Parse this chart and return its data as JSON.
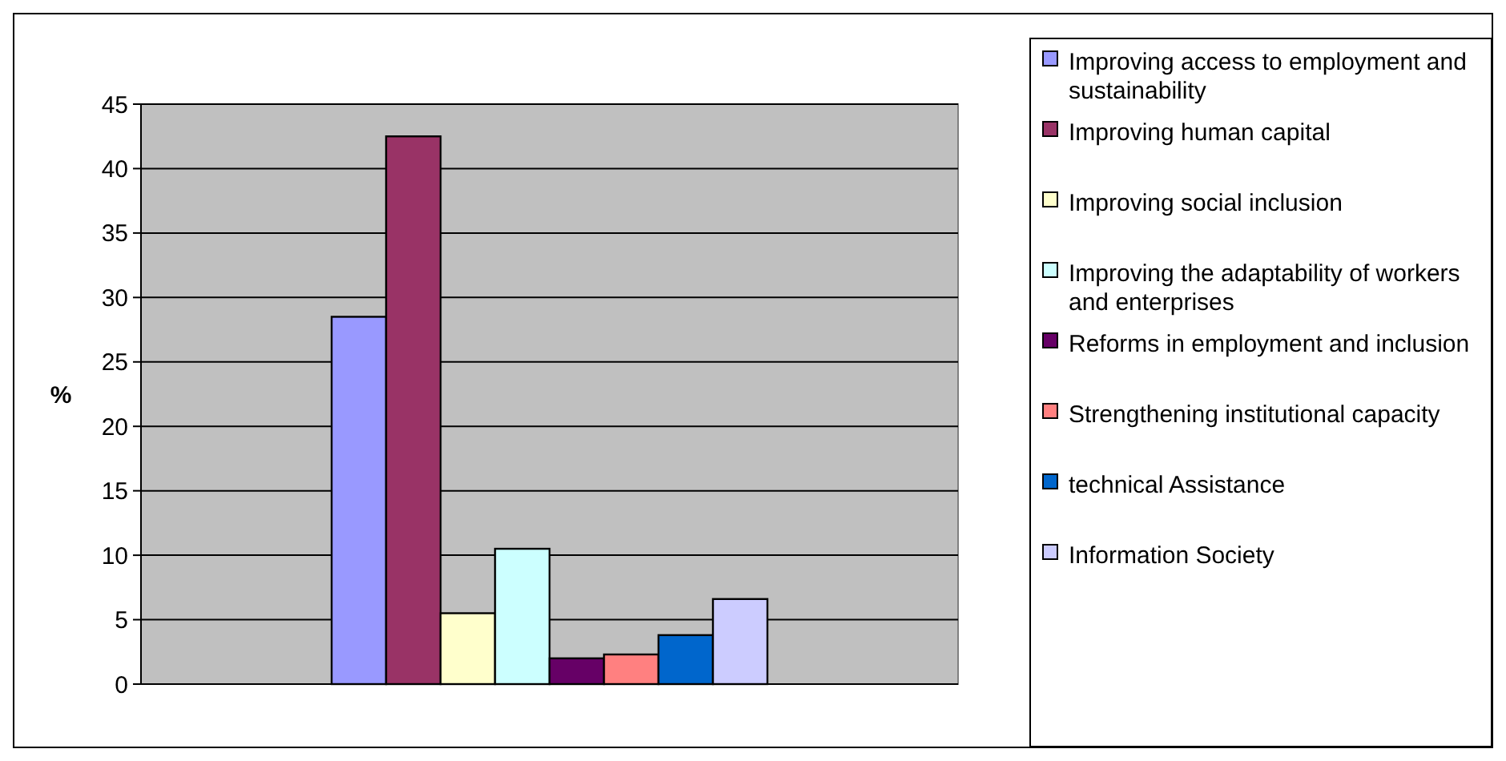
{
  "chart_data": {
    "type": "bar",
    "ylabel": "%",
    "categories": [
      null
    ],
    "series": [
      {
        "name": "Improving access to employment and sustainability",
        "color": "#9999ff",
        "values": [
          28.5
        ]
      },
      {
        "name": "Improving human capital",
        "color": "#993366",
        "values": [
          42.5
        ]
      },
      {
        "name": "Improving social inclusion",
        "color": "#ffffcc",
        "values": [
          5.5
        ]
      },
      {
        "name": "Improving the adaptability of workers and enterprises",
        "color": "#ccffff",
        "values": [
          10.5
        ]
      },
      {
        "name": "Reforms in employment and inclusion",
        "color": "#660066",
        "values": [
          2
        ]
      },
      {
        "name": "Strengthening institutional capacity",
        "color": "#ff8080",
        "values": [
          2.3
        ]
      },
      {
        "name": "technical Assistance",
        "color": "#0066cc",
        "values": [
          3.8
        ]
      },
      {
        "name": "Information Society",
        "color": "#ccccff",
        "values": [
          6.6
        ]
      }
    ],
    "ylim": [
      0,
      45
    ],
    "yticks": [
      0,
      5,
      10,
      15,
      20,
      25,
      30,
      35,
      40,
      45
    ],
    "grid": "y",
    "legend": "right"
  }
}
